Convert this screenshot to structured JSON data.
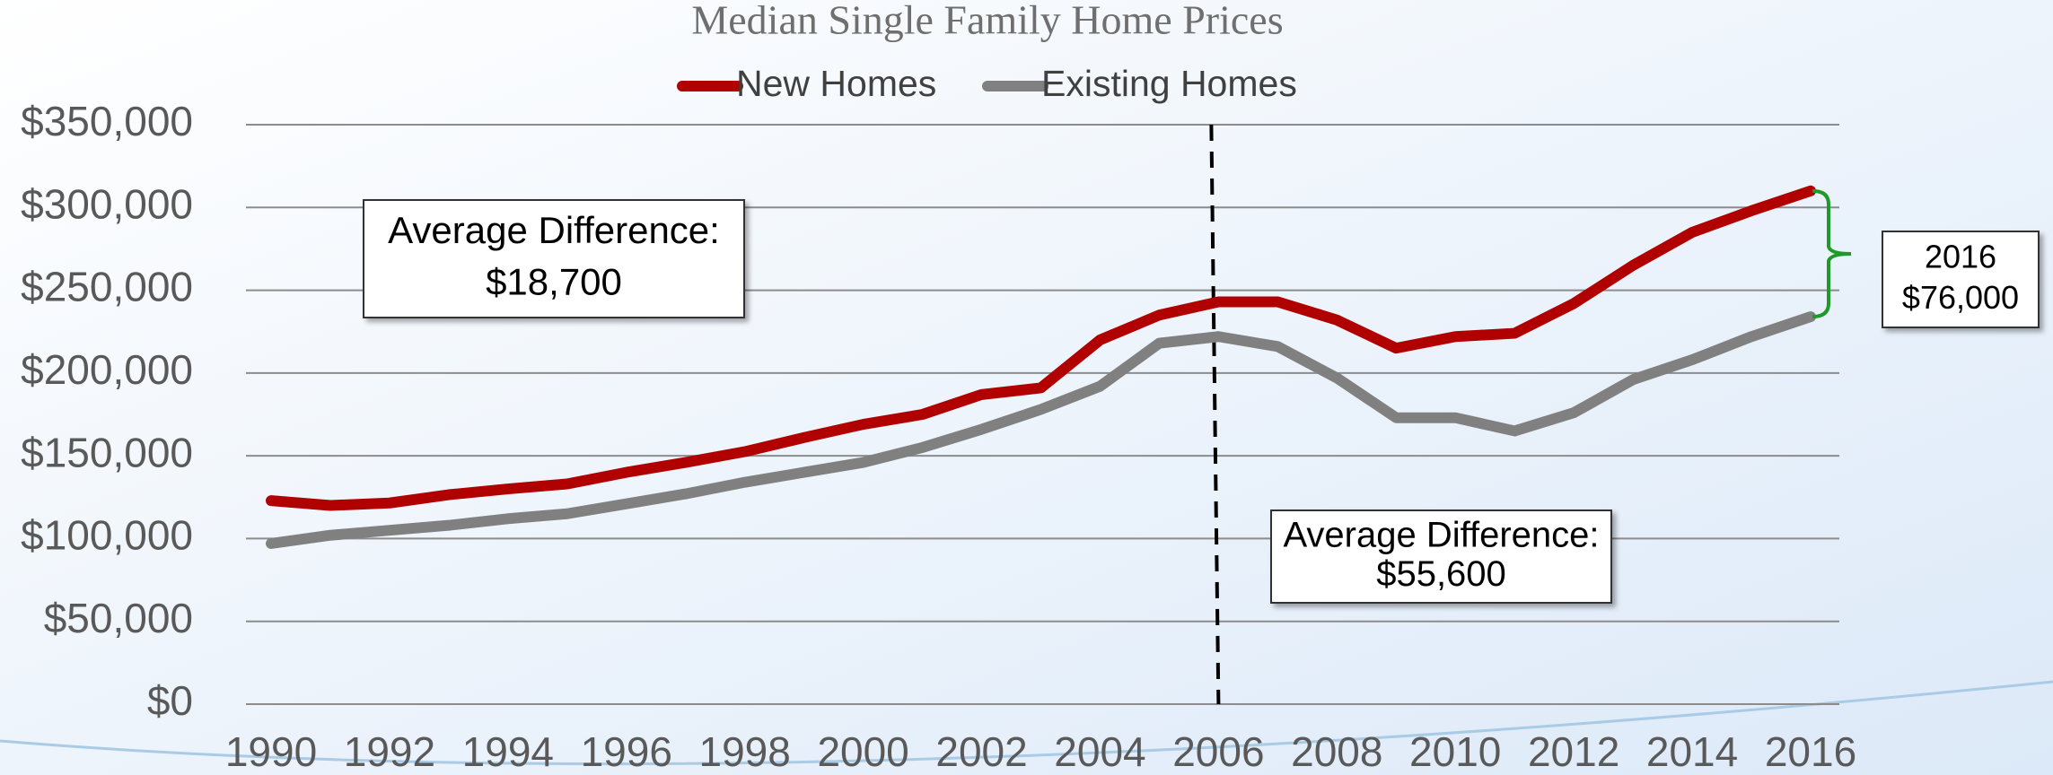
{
  "chart_data": {
    "type": "line",
    "title": "Median Single Family Home Prices",
    "x": [
      1990,
      1991,
      1992,
      1993,
      1994,
      1995,
      1996,
      1997,
      1998,
      1999,
      2000,
      2001,
      2002,
      2003,
      2004,
      2005,
      2006,
      2007,
      2008,
      2009,
      2010,
      2011,
      2012,
      2013,
      2014,
      2015,
      2016
    ],
    "series": [
      {
        "name": "New Homes",
        "color": "#b00000",
        "values": [
          122900,
          120000,
          121500,
          126500,
          130000,
          133000,
          140000,
          146000,
          152500,
          161000,
          169000,
          175000,
          187000,
          191000,
          220000,
          235000,
          243000,
          243000,
          232000,
          215000,
          222000,
          224000,
          242000,
          265000,
          285000,
          298000,
          310000
        ]
      },
      {
        "name": "Existing Homes",
        "color": "#808080",
        "values": [
          97000,
          102000,
          105000,
          108000,
          112000,
          115000,
          121000,
          127000,
          134000,
          140000,
          146000,
          155000,
          166000,
          178000,
          192000,
          218000,
          222000,
          216000,
          197000,
          173000,
          173000,
          165000,
          176000,
          196000,
          208000,
          222000,
          234000
        ]
      }
    ],
    "xlim": [
      1990,
      2016
    ],
    "xticks": [
      1990,
      1992,
      1994,
      1996,
      1998,
      2000,
      2002,
      2004,
      2006,
      2008,
      2010,
      2012,
      2014,
      2016
    ],
    "ylim": [
      0,
      350000
    ],
    "yticks": [
      {
        "value": 0,
        "label": "$0"
      },
      {
        "value": 50000,
        "label": "$50,000"
      },
      {
        "value": 100000,
        "label": "$100,000"
      },
      {
        "value": 150000,
        "label": "$150,000"
      },
      {
        "value": 200000,
        "label": "$200,000"
      },
      {
        "value": 250000,
        "label": "$250,000"
      },
      {
        "value": 300000,
        "label": "$300,000"
      },
      {
        "value": 350000,
        "label": "$350,000"
      }
    ],
    "grid": true,
    "divider_x": 2006,
    "annotations": [
      {
        "lines": [
          "Average Difference:",
          "$18,700"
        ]
      },
      {
        "lines": [
          "Average Difference:",
          "$55,600"
        ]
      },
      {
        "lines": [
          "2016",
          "$76,000"
        ]
      }
    ]
  }
}
